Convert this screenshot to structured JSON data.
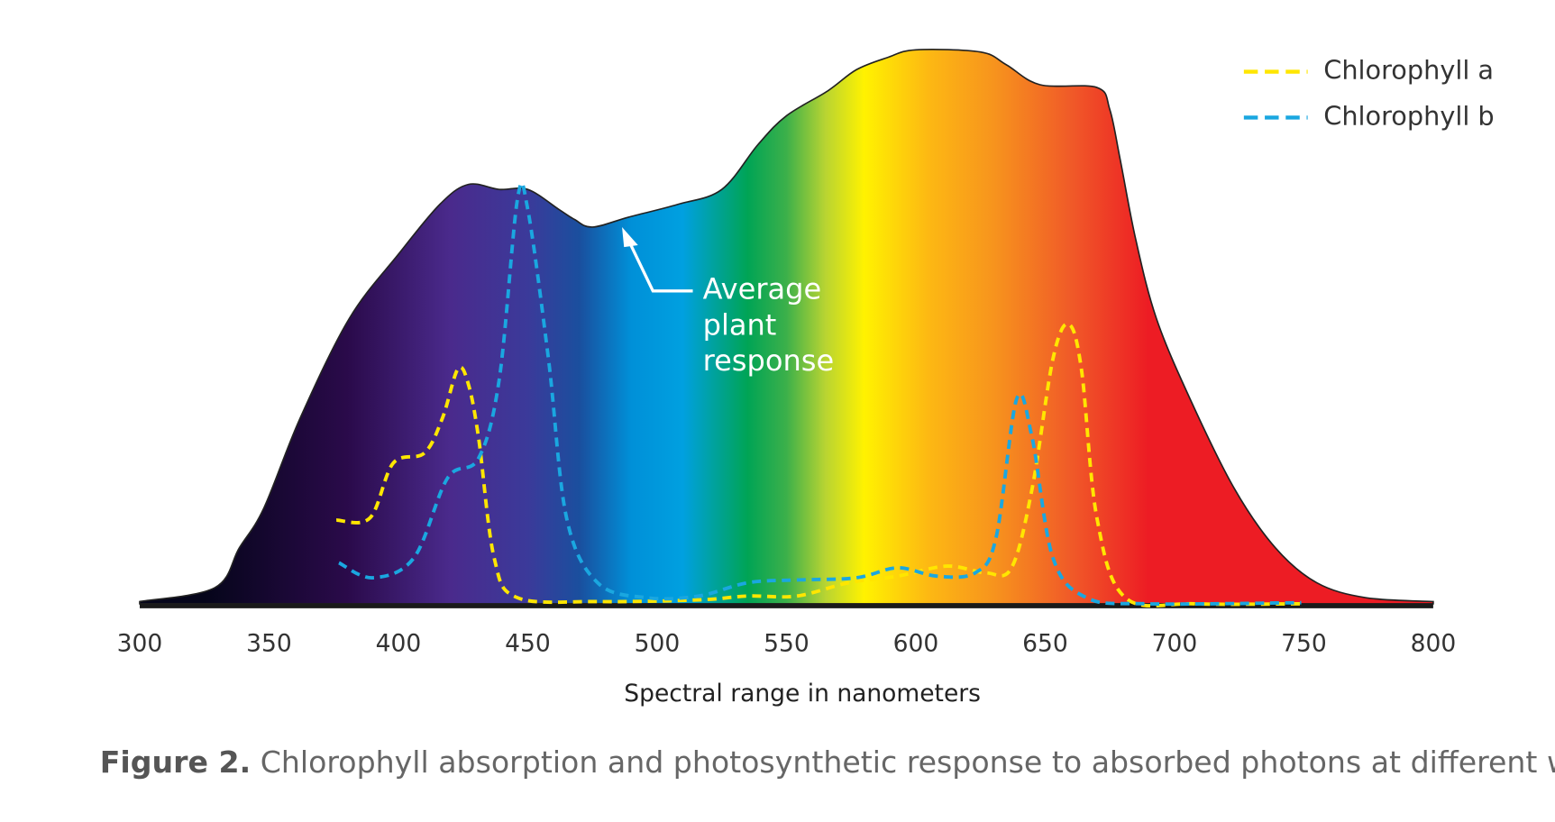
{
  "chart_data": {
    "type": "line",
    "x_label": "Spectral range in nanometers",
    "caption_label": "Figure 2.",
    "caption": "Chlorophyll absorption and photosynthetic response to absorbed photons at different wavelengths",
    "annotation": "Average plant response",
    "xlim": [
      300,
      800
    ],
    "xticks": [
      300,
      350,
      400,
      450,
      500,
      550,
      600,
      650,
      700,
      750,
      800
    ],
    "ylim": [
      0,
      100
    ],
    "legend": "upper right",
    "area": {
      "x": [
        300,
        329,
        338.5,
        348,
        362,
        381,
        400,
        416,
        427,
        439,
        450,
        462,
        468,
        475,
        489,
        508,
        525,
        539,
        550,
        566,
        577,
        589,
        600,
        625,
        635,
        648,
        670,
        675,
        679,
        685,
        693,
        706,
        723,
        739,
        755,
        774,
        800
      ],
      "values": [
        0.4,
        2.9,
        10.1,
        17.3,
        33.5,
        51.5,
        63.1,
        72.1,
        75.7,
        74.8,
        74.8,
        71.2,
        69.4,
        68,
        69.8,
        72.1,
        74.8,
        82.9,
        88.1,
        92.6,
        96.4,
        98.6,
        100,
        99.6,
        97.3,
        93.7,
        93.2,
        89.2,
        80.2,
        65.8,
        51.5,
        37,
        20.9,
        10.1,
        3.8,
        1.1,
        0.4
      ]
    },
    "series": [
      {
        "name": "Chlorophyll a",
        "color": "#ffe600",
        "x": [
          376,
          389,
          398,
          410,
          417,
          423,
          427,
          431,
          437,
          446,
          477,
          516,
          535,
          554,
          574,
          593,
          612,
          627,
          637,
          645,
          653,
          659,
          664,
          670,
          681,
          708,
          749
        ],
        "values": [
          15.1,
          15.5,
          25.4,
          27.2,
          33.5,
          42.4,
          39.7,
          29.9,
          8.3,
          1.1,
          0.4,
          0.7,
          1.4,
          1.4,
          3.8,
          5,
          6.8,
          5.6,
          6.5,
          20.9,
          44.2,
          50.5,
          42.4,
          15.5,
          1.1,
          0,
          0
        ]
      },
      {
        "name": "Chlorophyll b",
        "color": "#1aa7e0",
        "x": [
          377,
          390,
          406,
          419,
          431,
          439,
          446,
          450,
          458,
          465,
          477,
          496,
          516,
          535,
          554,
          577,
          593,
          608,
          623,
          631,
          639,
          645,
          653,
          666,
          689,
          749
        ],
        "values": [
          7.4,
          4.7,
          8.3,
          22.7,
          26.3,
          40.6,
          73,
          71.2,
          44.2,
          15.5,
          3.8,
          1.1,
          1.4,
          3.8,
          4.3,
          4.7,
          6.5,
          5,
          5.6,
          11.9,
          37,
          29.9,
          8.3,
          1.1,
          0,
          0.2
        ]
      }
    ]
  }
}
